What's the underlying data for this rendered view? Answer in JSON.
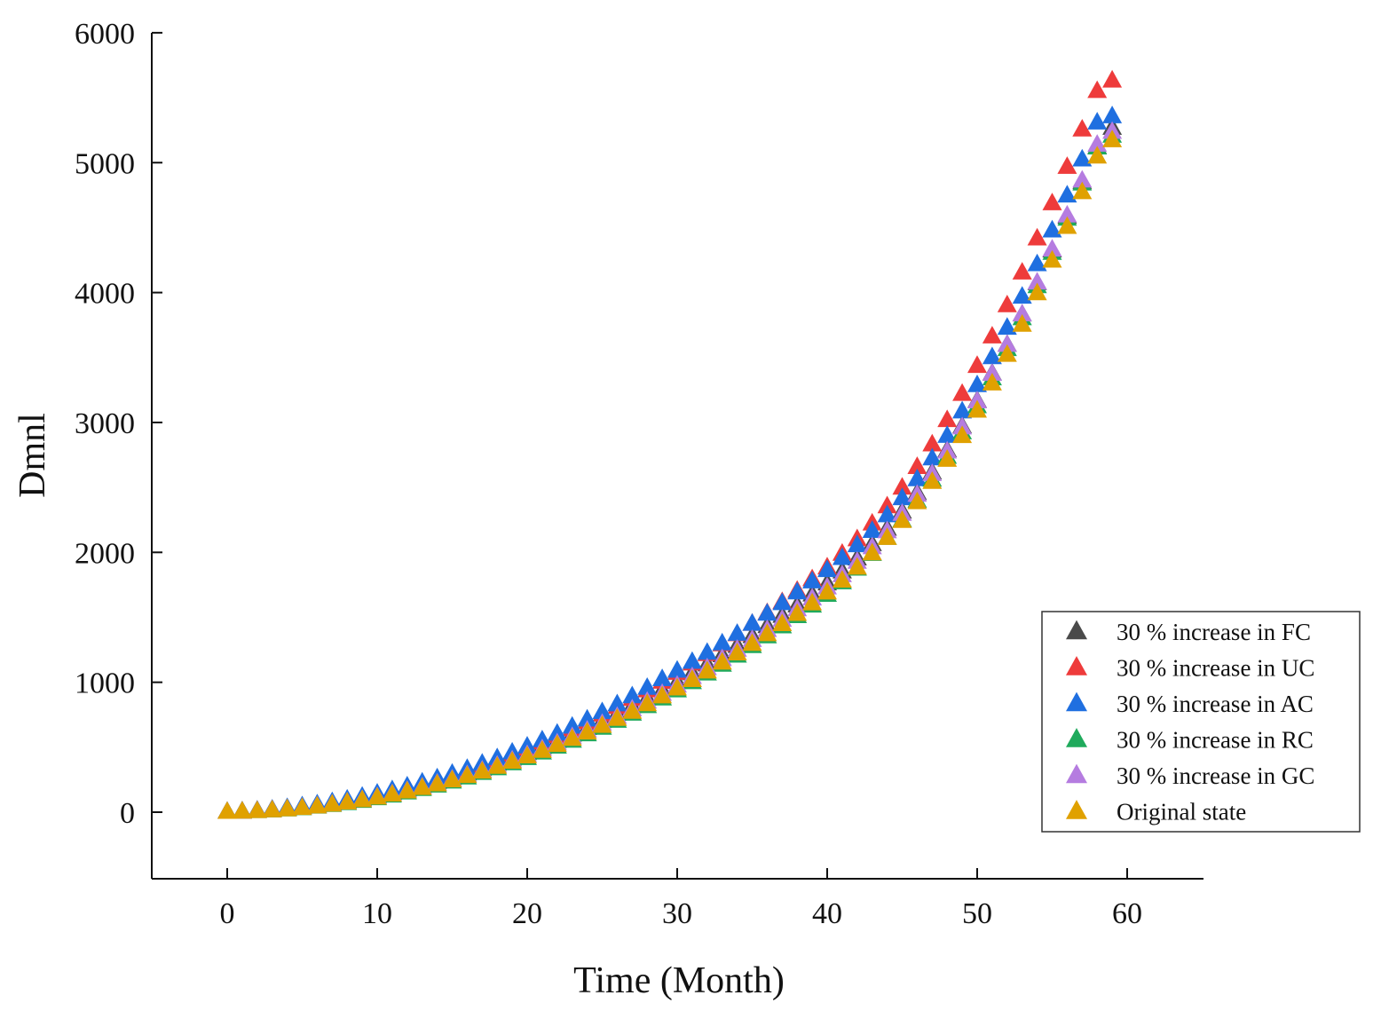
{
  "chart_data": {
    "type": "scatter",
    "title": "",
    "xlabel": "Time (Month)",
    "ylabel": "Dmnl",
    "xlim": [
      -5,
      65
    ],
    "ylim": [
      -500,
      6000
    ],
    "xticks": [
      "0",
      "10",
      "20",
      "30",
      "40",
      "50",
      "60"
    ],
    "yticks": [
      "0",
      "1000",
      "2000",
      "3000",
      "4000",
      "5000",
      "6000"
    ],
    "xtick_values": [
      0,
      10,
      20,
      30,
      40,
      50,
      60
    ],
    "ytick_values": [
      0,
      1000,
      2000,
      3000,
      4000,
      5000,
      6000
    ],
    "legend_position": "bottom-right",
    "marker": "triangle",
    "x": [
      0,
      1,
      2,
      3,
      4,
      5,
      6,
      7,
      8,
      9,
      10,
      11,
      12,
      13,
      14,
      15,
      16,
      17,
      18,
      19,
      20,
      21,
      22,
      23,
      24,
      25,
      26,
      27,
      28,
      29,
      30,
      31,
      32,
      33,
      34,
      35,
      36,
      37,
      38,
      39,
      40,
      41,
      42,
      43,
      44,
      45,
      46,
      47,
      48,
      49,
      50,
      51,
      52,
      53,
      54,
      55,
      56,
      57,
      58,
      59
    ],
    "series": [
      {
        "name": "30 % increase in FC",
        "color": "#4a4a4a",
        "values": [
          0,
          3,
          8,
          15,
          24,
          36,
          49,
          64,
          81,
          101,
          122,
          146,
          172,
          200,
          230,
          262,
          296,
          332,
          371,
          411,
          454,
          499,
          546,
          595,
          646,
          700,
          756,
          814,
          874,
          936,
          1000,
          1067,
          1135,
          1206,
          1278,
          1353,
          1430,
          1509,
          1590,
          1673,
          1759,
          1851,
          1951,
          2061,
          2180,
          2311,
          2455,
          2613,
          2784,
          2968,
          3165,
          3375,
          3596,
          3829,
          4071,
          4322,
          4581,
          4847,
          5119,
          5266
        ]
      },
      {
        "name": "30 % increase in UC",
        "color": "#ee3b3b",
        "values": [
          0,
          3,
          9,
          16,
          26,
          38,
          53,
          69,
          88,
          108,
          131,
          157,
          184,
          214,
          246,
          281,
          317,
          356,
          397,
          440,
          486,
          534,
          584,
          636,
          691,
          749,
          808,
          870,
          935,
          1002,
          1070,
          1142,
          1215,
          1290,
          1368,
          1448,
          1530,
          1615,
          1702,
          1791,
          1882,
          1987,
          2099,
          2220,
          2352,
          2496,
          2655,
          2829,
          3016,
          3218,
          3433,
          3660,
          3900,
          4152,
          4414,
          4685,
          4965,
          5253,
          5549,
          5630
        ]
      },
      {
        "name": "30 % increase in AC",
        "color": "#1f6fe0",
        "values": [
          0,
          4,
          10,
          18,
          30,
          43,
          58,
          75,
          95,
          117,
          141,
          167,
          196,
          226,
          259,
          294,
          331,
          371,
          413,
          457,
          503,
          551,
          602,
          656,
          711,
          768,
          828,
          890,
          955,
          1022,
          1087,
          1155,
          1225,
          1297,
          1371,
          1448,
          1526,
          1607,
          1690,
          1774,
          1861,
          1954,
          2053,
          2163,
          2283,
          2415,
          2561,
          2721,
          2895,
          3083,
          3285,
          3500,
          3727,
          3966,
          4216,
          4476,
          4745,
          5022,
          5307,
          5355
        ]
      },
      {
        "name": "30 % increase in RC",
        "color": "#1faa5c",
        "values": [
          0,
          2,
          6,
          11,
          19,
          28,
          40,
          53,
          68,
          85,
          105,
          126,
          150,
          176,
          203,
          233,
          265,
          300,
          336,
          374,
          414,
          457,
          502,
          548,
          597,
          648,
          701,
          756,
          814,
          873,
          935,
          999,
          1065,
          1133,
          1203,
          1276,
          1351,
          1428,
          1507,
          1588,
          1671,
          1767,
          1872,
          1986,
          2110,
          2246,
          2395,
          2557,
          2733,
          2922,
          3123,
          3337,
          3563,
          3800,
          4047,
          4303,
          4566,
          4837,
          5115,
          5205
        ]
      },
      {
        "name": "30 % increase in GC",
        "color": "#b57ce0",
        "values": [
          0,
          2,
          7,
          13,
          21,
          31,
          44,
          58,
          74,
          93,
          114,
          137,
          162,
          189,
          218,
          249,
          283,
          318,
          356,
          396,
          438,
          482,
          528,
          576,
          626,
          678,
          732,
          789,
          848,
          909,
          972,
          1038,
          1106,
          1176,
          1248,
          1323,
          1400,
          1479,
          1560,
          1643,
          1728,
          1822,
          1925,
          2037,
          2160,
          2294,
          2441,
          2601,
          2774,
          2960,
          3160,
          3372,
          3595,
          3830,
          4075,
          4329,
          4591,
          4860,
          5136,
          5235
        ]
      },
      {
        "name": "Original state",
        "color": "#e0a100",
        "values": [
          0,
          2,
          6,
          12,
          20,
          30,
          42,
          56,
          72,
          90,
          110,
          133,
          157,
          184,
          212,
          243,
          276,
          310,
          347,
          386,
          427,
          470,
          515,
          562,
          611,
          662,
          716,
          771,
          829,
          889,
          950,
          1015,
          1081,
          1149,
          1220,
          1293,
          1368,
          1445,
          1524,
          1605,
          1689,
          1780,
          1880,
          1990,
          2109,
          2240,
          2384,
          2540,
          2710,
          2893,
          3089,
          3298,
          3518,
          3750,
          3992,
          4243,
          4503,
          4770,
          5045,
          5170
        ]
      }
    ]
  }
}
